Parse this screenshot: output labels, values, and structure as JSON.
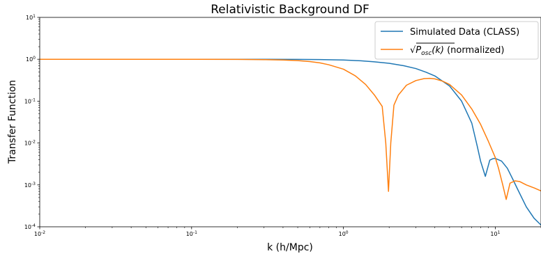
{
  "chart_data": {
    "type": "line",
    "title": "Relativistic Background DF",
    "xlabel": "k (h/Mpc)",
    "ylabel": "Transfer Function",
    "xscale": "log",
    "yscale": "log",
    "xlim": [
      0.01,
      20
    ],
    "ylim": [
      0.0001,
      10
    ],
    "grid": false,
    "legend_position": "top-right",
    "x_ticks": [
      {
        "value": 0.01,
        "mantissa": "10",
        "exp": "-2"
      },
      {
        "value": 0.1,
        "mantissa": "10",
        "exp": "-1"
      },
      {
        "value": 1,
        "mantissa": "10",
        "exp": "0"
      },
      {
        "value": 10,
        "mantissa": "10",
        "exp": "1"
      }
    ],
    "y_ticks": [
      {
        "value": 0.0001,
        "mantissa": "10",
        "exp": "-4"
      },
      {
        "value": 0.001,
        "mantissa": "10",
        "exp": "-3"
      },
      {
        "value": 0.01,
        "mantissa": "10",
        "exp": "-2"
      },
      {
        "value": 0.1,
        "mantissa": "10",
        "exp": "-1"
      },
      {
        "value": 1,
        "mantissa": "10",
        "exp": "0"
      },
      {
        "value": 10,
        "mantissa": "10",
        "exp": "1"
      }
    ],
    "series": [
      {
        "name": "Simulated Data (CLASS)",
        "color": "#1f77b4",
        "points": [
          [
            0.01,
            1.0
          ],
          [
            0.1,
            1.0
          ],
          [
            0.3,
            1.0
          ],
          [
            0.5,
            0.995
          ],
          [
            0.7,
            0.985
          ],
          [
            1.0,
            0.96
          ],
          [
            1.3,
            0.92
          ],
          [
            1.6,
            0.87
          ],
          [
            2.0,
            0.8
          ],
          [
            2.5,
            0.7
          ],
          [
            3.0,
            0.6
          ],
          [
            3.5,
            0.49
          ],
          [
            4.0,
            0.4
          ],
          [
            5.0,
            0.23
          ],
          [
            6.0,
            0.1
          ],
          [
            7.0,
            0.03
          ],
          [
            7.6,
            0.0085
          ],
          [
            8.0,
            0.0037
          ],
          [
            8.6,
            0.0016
          ],
          [
            9.2,
            0.0039
          ],
          [
            9.6,
            0.0042
          ],
          [
            10.0,
            0.0043
          ],
          [
            11.0,
            0.0037
          ],
          [
            12.0,
            0.0025
          ],
          [
            13.0,
            0.0014
          ],
          [
            14.0,
            0.0008
          ],
          [
            16.0,
            0.0003
          ],
          [
            18.0,
            0.00016
          ],
          [
            20.0,
            0.00011
          ]
        ]
      },
      {
        "name": "Posc-normalized",
        "legend_sqrt": "√",
        "legend_var": "P",
        "legend_sub": "osc",
        "legend_arg": "(k)",
        "legend_suffix": " (normalized)",
        "color": "#ff7f0e",
        "points": [
          [
            0.01,
            1.0
          ],
          [
            0.1,
            1.0
          ],
          [
            0.2,
            0.995
          ],
          [
            0.3,
            0.98
          ],
          [
            0.4,
            0.96
          ],
          [
            0.5,
            0.93
          ],
          [
            0.6,
            0.88
          ],
          [
            0.7,
            0.82
          ],
          [
            0.8,
            0.74
          ],
          [
            1.0,
            0.58
          ],
          [
            1.2,
            0.4
          ],
          [
            1.4,
            0.25
          ],
          [
            1.6,
            0.14
          ],
          [
            1.8,
            0.075
          ],
          [
            1.9,
            0.01
          ],
          [
            1.98,
            0.0007
          ],
          [
            2.05,
            0.01
          ],
          [
            2.15,
            0.08
          ],
          [
            2.3,
            0.14
          ],
          [
            2.6,
            0.24
          ],
          [
            3.0,
            0.31
          ],
          [
            3.4,
            0.345
          ],
          [
            3.7,
            0.35
          ],
          [
            4.0,
            0.34
          ],
          [
            4.5,
            0.3
          ],
          [
            5.0,
            0.25
          ],
          [
            6.0,
            0.14
          ],
          [
            7.0,
            0.065
          ],
          [
            8.0,
            0.028
          ],
          [
            9.0,
            0.011
          ],
          [
            10.0,
            0.0045
          ],
          [
            10.5,
            0.0025
          ],
          [
            11.2,
            0.001
          ],
          [
            11.8,
            0.00045
          ],
          [
            12.5,
            0.0011
          ],
          [
            13.5,
            0.00125
          ],
          [
            14.5,
            0.0012
          ],
          [
            16.0,
            0.001
          ],
          [
            18.0,
            0.00085
          ],
          [
            20.0,
            0.00072
          ]
        ]
      }
    ]
  }
}
